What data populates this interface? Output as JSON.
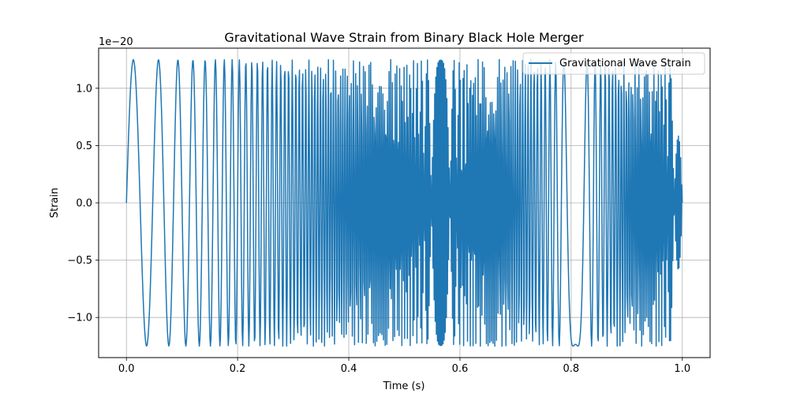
{
  "chart_data": {
    "type": "line",
    "title": "Gravitational Wave Strain from Binary Black Hole Merger",
    "xlabel": "Time (s)",
    "ylabel": "Strain",
    "y_offset_label": "1e−20",
    "xlim": [
      -0.05,
      1.05
    ],
    "ylim": [
      -1.35,
      1.35
    ],
    "y_scale_factor": 1e-20,
    "xticks": [
      0.0,
      0.2,
      0.4,
      0.6,
      0.8,
      1.0
    ],
    "xtick_labels": [
      "0.0",
      "0.2",
      "0.4",
      "0.6",
      "0.8",
      "1.0"
    ],
    "yticks": [
      -1.0,
      -0.5,
      0.0,
      0.5,
      1.0
    ],
    "ytick_labels": [
      "−1.0",
      "−0.5",
      "0.0",
      "0.5",
      "1.0"
    ],
    "grid": true,
    "legend": {
      "placement": "top-right",
      "entries": [
        "Gravitational Wave Strain"
      ]
    },
    "series": [
      {
        "name": "Gravitational Wave Strain",
        "color": "#1f77b4",
        "function": "amplitude * sin(2*pi*(f0*t + k*t^3))",
        "amplitude": 1.25e-20,
        "f0": 20,
        "k": 500,
        "x_range": [
          0.0,
          1.0
        ],
        "samples": 1000
      }
    ]
  }
}
